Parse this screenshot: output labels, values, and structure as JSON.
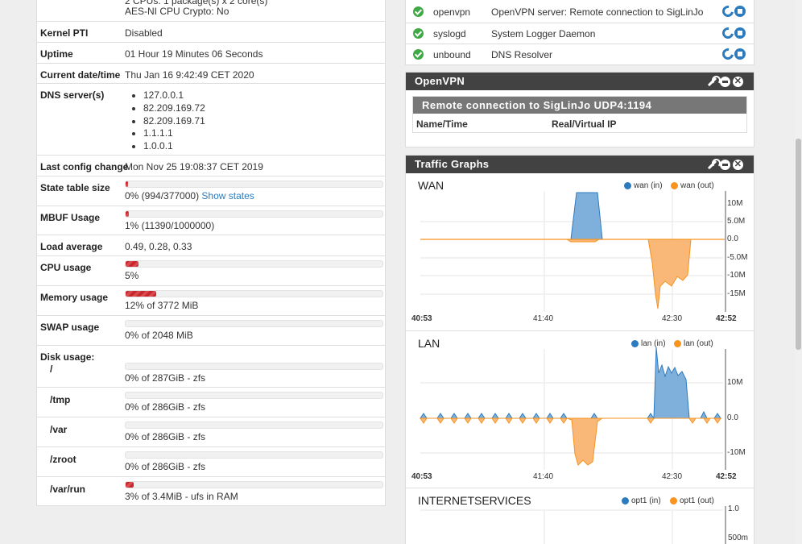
{
  "system": {
    "cpu_line1": "2 CPUs: 1 package(s) x 2 core(s)",
    "cpu_line2": "AES-NI CPU Crypto: No",
    "kernel_pti_label": "Kernel PTI",
    "kernel_pti": "Disabled",
    "uptime_label": "Uptime",
    "uptime": "01 Hour 19 Minutes 06 Seconds",
    "date_label": "Current date/time",
    "date": "Thu Jan 16 9:42:49 CET 2020",
    "dns_label": "DNS server(s)",
    "dns": [
      "127.0.0.1",
      "82.209.169.72",
      "82.209.169.71",
      "1.1.1.1",
      "1.0.0.1"
    ],
    "config_label": "Last config change",
    "config": "Mon Nov 25 19:08:37 CET 2019",
    "state_label": "State table size",
    "state": "0% (994/377000)",
    "state_link": "Show states",
    "state_level": 0.0026,
    "mbuf_label": "MBUF Usage",
    "mbuf": "1% (11390/1000000)",
    "mbuf_level": 0.0114,
    "load_label": "Load average",
    "load": "0.49, 0.28, 0.33",
    "cpu_label": "CPU usage",
    "cpu": "5%",
    "cpu_level": 0.05,
    "mem_label": "Memory usage",
    "mem": "12% of 3772 MiB",
    "mem_level": 0.12,
    "swap_label": "SWAP usage",
    "swap": "0% of 2048 MiB",
    "swap_level": 0,
    "disk_label": "Disk usage:",
    "disks": [
      {
        "mount": "/",
        "text": "0% of 287GiB - zfs",
        "level": 0
      },
      {
        "mount": "/tmp",
        "text": "0% of 286GiB - zfs",
        "level": 0
      },
      {
        "mount": "/var",
        "text": "0% of 286GiB - zfs",
        "level": 0
      },
      {
        "mount": "/zroot",
        "text": "0% of 286GiB - zfs",
        "level": 0
      },
      {
        "mount": "/var/run",
        "text": "3% of 3.4MiB - ufs in RAM",
        "level": 0.03
      }
    ]
  },
  "services": [
    {
      "name": "openvpn",
      "desc": "OpenVPN server: Remote connection to SigLinJo"
    },
    {
      "name": "syslogd",
      "desc": "System Logger Daemon"
    },
    {
      "name": "unbound",
      "desc": "DNS Resolver"
    }
  ],
  "openvpn": {
    "title": "OpenVPN",
    "server": "Remote connection to SigLinJo UDP4:1194",
    "col_name": "Name/Time",
    "col_ip": "Real/Virtual IP"
  },
  "traffic": {
    "title": "Traffic Graphs",
    "wan": {
      "name": "WAN",
      "in": "wan (in)",
      "out": "wan (out)",
      "yticks": [
        "10M",
        "5.0M",
        "0.0",
        "-5.0M",
        "-10M",
        "-15M"
      ],
      "xticks": [
        "40:53",
        "41:40",
        "42:30",
        "42:52"
      ]
    },
    "lan": {
      "name": "LAN",
      "in": "lan (in)",
      "out": "lan (out)",
      "yticks": [
        "10M",
        "0.0",
        "-10M"
      ],
      "xticks": [
        "40:53",
        "41:40",
        "42:30",
        "42:52"
      ]
    },
    "inet": {
      "name": "INTERNETSERVICES",
      "in": "opt1 (in)",
      "out": "opt1 (out)",
      "yticks": [
        "1.0",
        "500m"
      ]
    }
  },
  "colors": {
    "in": "#2c7bbf",
    "out": "#f7931e",
    "in_fill": "#7fb0dc",
    "out_fill": "#f9b877",
    "accent": "#c8252c"
  }
}
